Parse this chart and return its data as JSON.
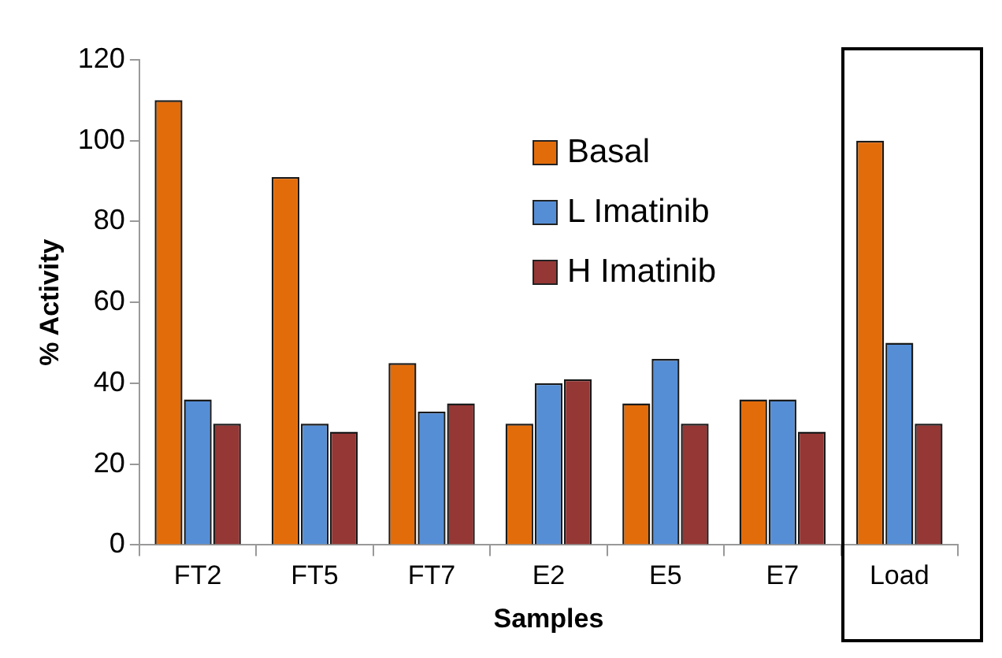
{
  "chart_data": {
    "type": "bar",
    "xlabel": "Samples",
    "ylabel": "% Activity",
    "categories": [
      "FT2",
      "FT5",
      "FT7",
      "E2",
      "E5",
      "E7",
      "Load"
    ],
    "series": [
      {
        "name": "Basal",
        "color": "#e36c0a",
        "values": [
          110,
          91,
          45,
          30,
          35,
          36,
          100
        ]
      },
      {
        "name": "L Imatinib",
        "color": "#558ed5",
        "values": [
          36,
          30,
          33,
          40,
          46,
          36,
          50
        ]
      },
      {
        "name": "H Imatinib",
        "color": "#953735",
        "values": [
          30,
          28,
          35,
          41,
          30,
          28,
          30
        ]
      }
    ],
    "ylim": [
      0,
      120
    ],
    "yticks": [
      0,
      20,
      40,
      60,
      80,
      100,
      120
    ],
    "grid": false,
    "legend": "top right"
  }
}
